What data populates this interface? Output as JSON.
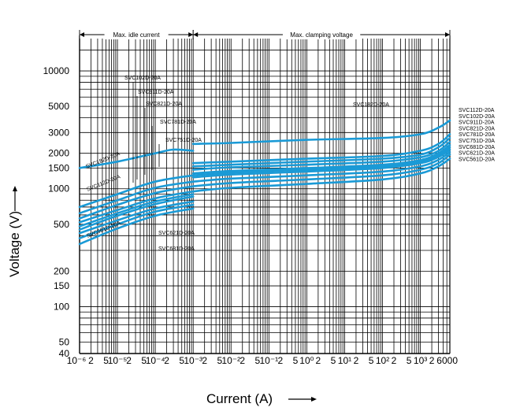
{
  "chart_data": {
    "type": "line",
    "xlabel": "Current (A)",
    "ylabel": "Voltage (V)",
    "x_scale": "log",
    "y_scale": "log",
    "xlim": [
      1e-06,
      6000
    ],
    "ylim": [
      40,
      20000
    ],
    "y_ticks": [
      {
        "value": 10000,
        "label": "10000"
      },
      {
        "value": 5000,
        "label": "5000"
      },
      {
        "value": 3000,
        "label": "3000"
      },
      {
        "value": 2000,
        "label": "2000"
      },
      {
        "value": 1500,
        "label": "1500"
      },
      {
        "value": 1000,
        "label": "1000"
      },
      {
        "value": 500,
        "label": "500"
      },
      {
        "value": 200,
        "label": "200"
      },
      {
        "value": 150,
        "label": "150"
      },
      {
        "value": 100,
        "label": "100"
      },
      {
        "value": 50,
        "label": "50"
      },
      {
        "value": 40,
        "label": "40"
      }
    ],
    "x_tick_labels": [
      {
        "value": 1e-06,
        "label": "10⁻⁶"
      },
      {
        "value": 2e-06,
        "label": "2"
      },
      {
        "value": 5e-06,
        "label": "5"
      },
      {
        "value": 1e-05,
        "label": "10⁻⁵"
      },
      {
        "value": 2e-05,
        "label": "2"
      },
      {
        "value": 5e-05,
        "label": "5"
      },
      {
        "value": 0.0001,
        "label": "10⁻⁴"
      },
      {
        "value": 0.0002,
        "label": "2"
      },
      {
        "value": 0.0005,
        "label": "5"
      },
      {
        "value": 0.001,
        "label": "10⁻³"
      },
      {
        "value": 0.002,
        "label": "2"
      },
      {
        "value": 0.005,
        "label": "5"
      },
      {
        "value": 0.01,
        "label": "10⁻²"
      },
      {
        "value": 0.02,
        "label": "2"
      },
      {
        "value": 0.05,
        "label": "5"
      },
      {
        "value": 0.1,
        "label": "10⁻¹"
      },
      {
        "value": 0.2,
        "label": "2"
      },
      {
        "value": 0.5,
        "label": "5"
      },
      {
        "value": 1,
        "label": "10⁰"
      },
      {
        "value": 2,
        "label": "2"
      },
      {
        "value": 5,
        "label": "5"
      },
      {
        "value": 10,
        "label": "10¹"
      },
      {
        "value": 20,
        "label": "2"
      },
      {
        "value": 50,
        "label": "5"
      },
      {
        "value": 100,
        "label": "10²"
      },
      {
        "value": 200,
        "label": "2"
      },
      {
        "value": 500,
        "label": "5"
      },
      {
        "value": 1000,
        "label": "10³"
      },
      {
        "value": 2000,
        "label": "2"
      },
      {
        "value": 6000,
        "label": "6000"
      }
    ],
    "ranges": [
      {
        "label": "Max. idle current",
        "x_from": 1e-06,
        "x_to": 0.001
      },
      {
        "label": "Max. clamping voltage",
        "x_from": 0.001,
        "x_to": 6000
      }
    ],
    "grid": true,
    "line_color": "#1a9ad6",
    "series": [
      {
        "name": "SVC182D-20A",
        "x": [
          1e-06,
          1e-05,
          0.0001,
          0.0003,
          0.001
        ],
        "y": [
          1500,
          1700,
          2000,
          2150,
          2100
        ]
      },
      {
        "name": "SVC102D-20A",
        "x": [
          1e-06,
          1e-05,
          0.0001,
          0.001
        ],
        "y": [
          620,
          800,
          1020,
          1150
        ]
      },
      {
        "name": "SVC911D-20A",
        "x": [
          1e-06,
          1e-05,
          0.0001,
          0.001
        ],
        "y": [
          560,
          730,
          920,
          1050
        ]
      },
      {
        "name": "SVC821D-20A",
        "x": [
          1e-06,
          1e-05,
          0.0001,
          0.001
        ],
        "y": [
          520,
          660,
          830,
          950
        ]
      },
      {
        "name": "SVC781D-20A",
        "x": [
          1e-06,
          1e-05,
          0.0001,
          0.001
        ],
        "y": [
          480,
          620,
          780,
          900
        ]
      },
      {
        "name": "SVC751D-20A",
        "x": [
          1e-06,
          1e-05,
          0.0001,
          0.001
        ],
        "y": [
          450,
          590,
          740,
          860
        ]
      },
      {
        "name": "SVC112D-20A",
        "x": [
          1e-06,
          1e-05,
          0.0001,
          0.001
        ],
        "y": [
          700,
          900,
          1150,
          1300
        ]
      },
      {
        "name": "SVC681D-20A",
        "x": [
          1e-06,
          1e-05,
          0.0001,
          0.001
        ],
        "y": [
          420,
          540,
          680,
          780
        ]
      },
      {
        "name": "SVC621D-20A",
        "x": [
          1e-06,
          1e-05,
          0.0001,
          0.001
        ],
        "y": [
          380,
          500,
          640,
          730
        ]
      },
      {
        "name": "SVC561D-20A",
        "x": [
          1e-06,
          1e-05,
          0.0001,
          0.001
        ],
        "y": [
          340,
          460,
          590,
          680
        ]
      },
      {
        "name": "SVC182D-20A",
        "x": [
          0.001,
          0.01,
          1,
          100,
          1000,
          3000,
          6000
        ],
        "y": [
          2400,
          2450,
          2600,
          2700,
          2900,
          3300,
          3800
        ]
      },
      {
        "name": "SVC112D-20A",
        "x": [
          0.001,
          0.01,
          1,
          100,
          1000,
          3000,
          6000
        ],
        "y": [
          1650,
          1700,
          1800,
          1900,
          2100,
          2400,
          2900
        ]
      },
      {
        "name": "SVC102D-20A",
        "x": [
          0.001,
          0.01,
          1,
          100,
          1000,
          3000,
          6000
        ],
        "y": [
          1550,
          1600,
          1700,
          1800,
          1950,
          2250,
          2700
        ]
      },
      {
        "name": "SVC911D-20A",
        "x": [
          0.001,
          0.01,
          1,
          100,
          1000,
          3000,
          6000
        ],
        "y": [
          1450,
          1520,
          1600,
          1700,
          1850,
          2100,
          2500
        ]
      },
      {
        "name": "SVC821D-20A",
        "x": [
          0.001,
          0.01,
          1,
          100,
          1000,
          3000,
          6000
        ],
        "y": [
          1350,
          1420,
          1500,
          1600,
          1750,
          2000,
          2350
        ]
      },
      {
        "name": "SVC781D-20A",
        "x": [
          0.001,
          0.01,
          1,
          100,
          1000,
          3000,
          6000
        ],
        "y": [
          1300,
          1370,
          1450,
          1550,
          1700,
          1920,
          2250
        ]
      },
      {
        "name": "SVC751D-20A",
        "x": [
          0.001,
          0.01,
          1,
          100,
          1000,
          3000,
          6000
        ],
        "y": [
          1250,
          1320,
          1400,
          1500,
          1650,
          1860,
          2150
        ]
      },
      {
        "name": "SVC681D-20A",
        "x": [
          0.001,
          0.01,
          1,
          100,
          1000,
          3000,
          6000
        ],
        "y": [
          1150,
          1220,
          1300,
          1400,
          1550,
          1760,
          2050
        ]
      },
      {
        "name": "SVC621D-20A",
        "x": [
          0.001,
          0.01,
          1,
          100,
          1000,
          3000,
          6000
        ],
        "y": [
          1050,
          1120,
          1200,
          1300,
          1450,
          1650,
          1950
        ]
      },
      {
        "name": "SVC561D-20A",
        "x": [
          0.001,
          0.01,
          1,
          100,
          1000,
          3000,
          6000
        ],
        "y": [
          950,
          1020,
          1100,
          1200,
          1350,
          1550,
          1800
        ]
      }
    ],
    "right_legend": [
      "SVC112D-20A",
      "SVC102D-20A",
      "SVC911D-20A",
      "SVC821D-20A",
      "SVC781D-20A",
      "SVC751D-20A",
      "SVC681D-20A",
      "SVC621D-20A",
      "SVC561D-20A"
    ],
    "annotations": [
      "SVC102D-20A",
      "SVC911D-20A",
      "SVC821D-20A",
      "SVC781D-20A",
      "SVC751D-20A",
      "SVC182D-20A",
      "SVC182D-20A",
      "SVC112D-20A",
      "SVC561D-20A",
      "SVC621D-20A",
      "SVC681D-20A"
    ]
  }
}
